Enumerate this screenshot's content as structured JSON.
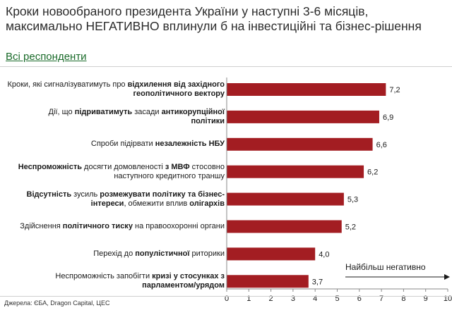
{
  "title": "Кроки новообраного президента України у наступні 3-6 місяців, максимально НЕГАТИВНО вплинули б на інвестиційні та бізнес-рішення",
  "subtitle": "Всі респонденти",
  "source": "Джерела: ЄБА, Dragon Capital, ЦЕС",
  "annotation": "Найбільш негативно",
  "colors": {
    "bar": "#a31d22",
    "axis": "#888888"
  },
  "chart_data": {
    "type": "bar",
    "orientation": "horizontal",
    "title": "Кроки новообраного президента України у наступні 3-6 місяців, максимально НЕГАТИВНО вплинули б на інвестиційні та бізнес-рішення",
    "xlim": [
      0,
      10
    ],
    "xticks": [
      "0",
      "1",
      "2",
      "3",
      "4",
      "5",
      "6",
      "7",
      "8",
      "9",
      "10"
    ],
    "grid": false,
    "categories": [
      "Кроки, які сигналізуватимуть про відхилення від західного геополітичного вектору",
      "Дії, що підриватимуть засади антикорупційної політики",
      "Спроби підірвати незалежність НБУ",
      "Неспроможність досягти домовленості з МВФ стосовно наступного кредитного траншу",
      "Відсутність зусиль розмежувати політику та бізнес-інтереси, обмежити вплив олігархів",
      "Здійснення політичного тиску на правоохоронні органи",
      "Перехід до популістичної риторики",
      "Неспроможність запобігти кризі у стосунках з парламентом/урядом"
    ],
    "values": [
      7.2,
      6.9,
      6.6,
      6.2,
      5.3,
      5.2,
      4.0,
      3.7
    ],
    "value_labels": [
      "7,2",
      "6,9",
      "6,6",
      "6,2",
      "5,3",
      "5,2",
      "4,0",
      "3,7"
    ]
  },
  "labels": [
    [
      {
        "t": "Кроки, які сигналізуватимуть про "
      },
      {
        "t": "відхилення від західного",
        "b": true
      },
      {
        "br": true
      },
      {
        "t": "геополітичного вектору",
        "b": true
      }
    ],
    [
      {
        "t": "Дії, що "
      },
      {
        "t": "підриватимуть",
        "b": true
      },
      {
        "t": " засади "
      },
      {
        "t": "антикорупційної",
        "b": true
      },
      {
        "br": true
      },
      {
        "t": "політики",
        "b": true
      }
    ],
    [
      {
        "t": "Спроби підірвати "
      },
      {
        "t": "незалежність НБУ",
        "b": true
      }
    ],
    [
      {
        "t": "Неспроможність",
        "b": true
      },
      {
        "t": " досягти домовленості "
      },
      {
        "t": "з МВФ",
        "b": true
      },
      {
        "t": " стосовно"
      },
      {
        "br": true
      },
      {
        "t": "наступного кредитного траншу"
      }
    ],
    [
      {
        "t": "Відсутність",
        "b": true
      },
      {
        "t": " зусиль "
      },
      {
        "t": "розмежувати політику та бізнес-",
        "b": true
      },
      {
        "br": true
      },
      {
        "t": "інтереси",
        "b": true
      },
      {
        "t": ", обмежити вплив "
      },
      {
        "t": "олігархів",
        "b": true
      }
    ],
    [
      {
        "t": "Здійснення "
      },
      {
        "t": "політичного тиску",
        "b": true
      },
      {
        "t": " на правоохоронні органи"
      }
    ],
    [
      {
        "t": "Перехід до "
      },
      {
        "t": "популістичної",
        "b": true
      },
      {
        "t": " риторики"
      }
    ],
    [
      {
        "t": "Неспроможність запобігти "
      },
      {
        "t": "кризі у стосунках з",
        "b": true
      },
      {
        "br": true
      },
      {
        "t": "парламентом/урядом",
        "b": true
      }
    ]
  ]
}
